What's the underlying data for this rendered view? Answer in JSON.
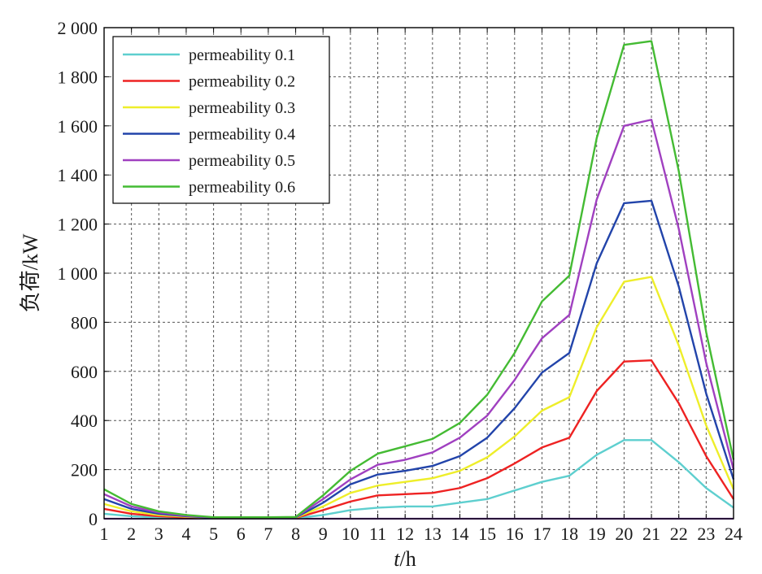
{
  "chart_data": {
    "type": "line",
    "title": "",
    "xlabel_italic": "t",
    "xlabel_unit": "/h",
    "ylabel": "负荷/kW",
    "xlim": [
      1,
      24
    ],
    "ylim": [
      0,
      2000
    ],
    "grid": true,
    "legend_position": "top-left",
    "x": [
      1,
      2,
      3,
      4,
      5,
      6,
      7,
      8,
      9,
      10,
      11,
      12,
      13,
      14,
      15,
      16,
      17,
      18,
      19,
      20,
      21,
      22,
      23,
      24
    ],
    "x_tick_labels": [
      "1",
      "2",
      "3",
      "4",
      "5",
      "6",
      "7",
      "8",
      "9",
      "10",
      "11",
      "12",
      "13",
      "14",
      "15",
      "16",
      "17",
      "18",
      "19",
      "20",
      "21",
      "22",
      "23",
      "24"
    ],
    "y_ticks": [
      0,
      200,
      400,
      600,
      800,
      1000,
      1200,
      1400,
      1600,
      1800,
      2000
    ],
    "y_tick_labels": [
      "0",
      "200",
      "400",
      "600",
      "800",
      "1 000",
      "1 200",
      "1 400",
      "1 600",
      "1 800",
      "2 000"
    ],
    "series": [
      {
        "name": "permeability 0.1",
        "color": "#5ecfcf",
        "values": [
          20,
          10,
          5,
          3,
          1,
          1,
          1,
          2,
          15,
          35,
          45,
          50,
          50,
          65,
          80,
          115,
          150,
          175,
          260,
          320,
          320,
          230,
          125,
          45
        ]
      },
      {
        "name": "permeability 0.2",
        "color": "#ee2222",
        "values": [
          40,
          20,
          10,
          5,
          2,
          2,
          2,
          3,
          35,
          70,
          95,
          100,
          105,
          125,
          165,
          225,
          290,
          330,
          520,
          640,
          645,
          470,
          255,
          80
        ]
      },
      {
        "name": "permeability 0.3",
        "color": "#eeee2a",
        "values": [
          60,
          30,
          15,
          8,
          3,
          3,
          3,
          4,
          50,
          105,
          135,
          150,
          165,
          195,
          250,
          335,
          440,
          495,
          780,
          965,
          985,
          705,
          380,
          120
        ]
      },
      {
        "name": "permeability 0.4",
        "color": "#2244aa",
        "values": [
          80,
          40,
          20,
          10,
          4,
          4,
          4,
          5,
          65,
          140,
          180,
          195,
          215,
          255,
          330,
          450,
          595,
          675,
          1040,
          1285,
          1295,
          945,
          510,
          160
        ]
      },
      {
        "name": "permeability 0.5",
        "color": "#a040c0",
        "values": [
          100,
          50,
          25,
          12,
          5,
          5,
          5,
          6,
          80,
          160,
          220,
          240,
          270,
          330,
          420,
          565,
          735,
          830,
          1300,
          1600,
          1625,
          1180,
          635,
          200
        ]
      },
      {
        "name": "permeability 0.6",
        "color": "#44bb33",
        "values": [
          120,
          60,
          30,
          15,
          6,
          6,
          6,
          7,
          95,
          195,
          265,
          295,
          325,
          390,
          505,
          675,
          885,
          990,
          1550,
          1930,
          1945,
          1415,
          760,
          240
        ]
      }
    ],
    "extra_lines": [
      {
        "color": "#8844bb",
        "values": [
          0,
          0,
          0,
          0,
          0,
          0,
          0,
          0,
          0,
          0,
          0,
          0,
          0,
          0,
          0,
          0,
          0,
          0,
          0,
          0,
          0,
          0,
          0,
          0
        ]
      }
    ]
  }
}
